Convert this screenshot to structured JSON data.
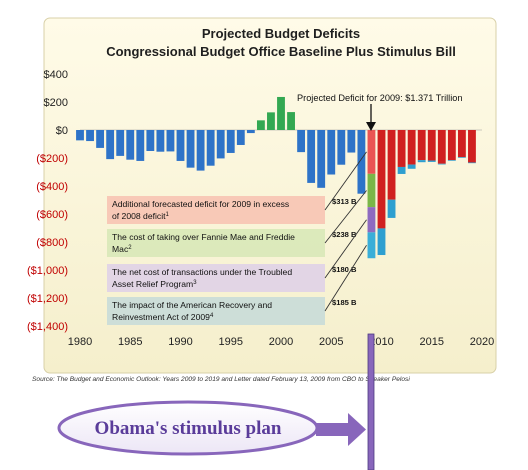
{
  "chart_data": {
    "type": "bar",
    "title": "Projected Budget Deficits",
    "subtitle": "Congressional Budget Office Baseline Plus Stimulus Bill",
    "xlabel": "",
    "ylabel": "",
    "xlim": [
      1980,
      2020
    ],
    "ylim": [
      -1400,
      400
    ],
    "x_ticks": [
      "1980",
      "1985",
      "1990",
      "1995",
      "2000",
      "2005",
      "2010",
      "2015",
      "2020"
    ],
    "y_ticks": [
      {
        "value": 400,
        "label": "$400"
      },
      {
        "value": 200,
        "label": "$200"
      },
      {
        "value": 0,
        "label": "$0"
      },
      {
        "value": -200,
        "label": "($200)"
      },
      {
        "value": -400,
        "label": "($400)"
      },
      {
        "value": -600,
        "label": "($600)"
      },
      {
        "value": -800,
        "label": "($800)"
      },
      {
        "value": -1000,
        "label": "($1,000)"
      },
      {
        "value": -1200,
        "label": "($1,200)"
      },
      {
        "value": -1400,
        "label": "($1,400)"
      }
    ],
    "grid": false,
    "colors": {
      "historical_deficit": "#2e73c8",
      "historical_surplus": "#33a852",
      "projected": "#d02020",
      "projected_stimulus": "#2e9fd0",
      "seg_2008_excess": "#ea5454",
      "seg_fannie_freddie": "#7ab648",
      "seg_tarp": "#8e6ac0",
      "seg_recovery_act": "#3aaed8",
      "background": "#fbf7e2",
      "arrow_purple": "#8866bb"
    },
    "historical": {
      "years": [
        1980,
        1981,
        1982,
        1983,
        1984,
        1985,
        1986,
        1987,
        1988,
        1989,
        1990,
        1991,
        1992,
        1993,
        1994,
        1995,
        1996,
        1997,
        1998,
        1999,
        2000,
        2001,
        2002,
        2003,
        2004,
        2005,
        2006,
        2007,
        2008
      ],
      "values": [
        -74,
        -79,
        -128,
        -208,
        -185,
        -212,
        -221,
        -150,
        -155,
        -153,
        -221,
        -269,
        -290,
        -255,
        -203,
        -164,
        -107,
        -22,
        69,
        126,
        236,
        128,
        -158,
        -378,
        -413,
        -318,
        -248,
        -161,
        -455
      ]
    },
    "projected": {
      "years": [
        2010,
        2011,
        2012,
        2013,
        2014,
        2015,
        2016,
        2017,
        2018,
        2019
      ],
      "baseline": [
        -703,
        -498,
        -264,
        -247,
        -215,
        -218,
        -241,
        -215,
        -194,
        -232
      ],
      "stimulus_addition": [
        -190,
        -130,
        -50,
        -30,
        -15,
        -10,
        -5,
        -5,
        -5,
        -5
      ]
    },
    "deficit_2009_breakdown": [
      {
        "label_line1": "Additional forecasted deficit for 2009 in excess",
        "label_line2": "of 2008 deficit",
        "sup": "1",
        "value_label": "$313 B",
        "value": -313
      },
      {
        "label_line1": "The cost of taking over Fannie Mae and Freddie",
        "label_line2": "Mac",
        "sup": "2",
        "value_label": "$238 B",
        "value": -238
      },
      {
        "label_line1": "The net cost of transactions under the Troubled",
        "label_line2": "Asset Relief Program",
        "sup": "3",
        "value_label": "$180 B",
        "value": -180
      },
      {
        "label_line1": "The impact of the American Recovery and",
        "label_line2": "Reinvestment Act of 2009",
        "sup": "4",
        "value_label": "$185 B",
        "value": -185
      }
    ],
    "annotation": "Projected Deficit for 2009: $1.371 Trillion",
    "source": "Source: The Budget and Economic Outlook: Years 2009 to 2019 and Letter dated February 13, 2009 from CBO to Speaker Pelosi",
    "callout": "Obama's stimulus plan"
  }
}
